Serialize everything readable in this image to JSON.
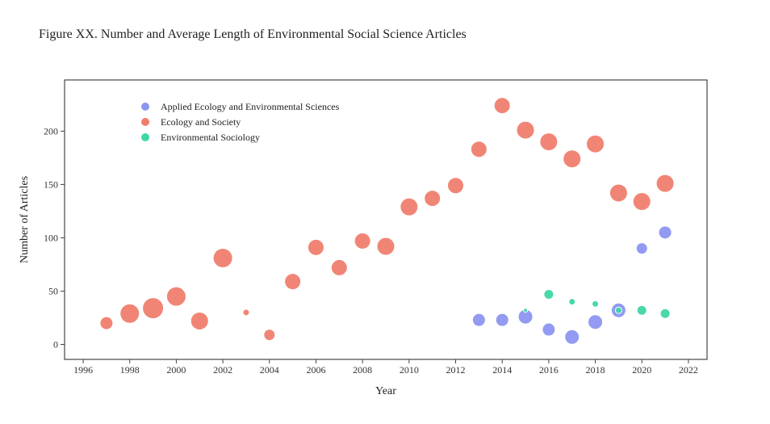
{
  "chart_data": {
    "type": "scatter",
    "title": "Figure XX. Number and Average Length of Environmental Social Science Articles",
    "xlabel": "Year",
    "ylabel": "Number of Articles",
    "xlim": [
      1995.2,
      2022.8
    ],
    "ylim": [
      -14,
      248
    ],
    "xticks": [
      1996,
      1998,
      2000,
      2002,
      2004,
      2006,
      2008,
      2010,
      2012,
      2014,
      2016,
      2018,
      2020,
      2022
    ],
    "yticks": [
      0,
      50,
      100,
      150,
      200
    ],
    "grid": false,
    "legend_position": "top-left",
    "series": [
      {
        "name": "Applied Ecology and Environmental Sciences",
        "color": "#8c96f0",
        "points": [
          {
            "x": 2013,
            "y": 23,
            "size": 8
          },
          {
            "x": 2014,
            "y": 23,
            "size": 8
          },
          {
            "x": 2015,
            "y": 26,
            "size": 9
          },
          {
            "x": 2016,
            "y": 14,
            "size": 8
          },
          {
            "x": 2017,
            "y": 7,
            "size": 9
          },
          {
            "x": 2018,
            "y": 21,
            "size": 9
          },
          {
            "x": 2019,
            "y": 32,
            "size": 9
          },
          {
            "x": 2020,
            "y": 90,
            "size": 7
          },
          {
            "x": 2021,
            "y": 105,
            "size": 8
          }
        ]
      },
      {
        "name": "Ecology and Society",
        "color": "#f07e6e",
        "points": [
          {
            "x": 1997,
            "y": 20,
            "size": 8
          },
          {
            "x": 1998,
            "y": 29,
            "size": 12
          },
          {
            "x": 1999,
            "y": 34,
            "size": 13
          },
          {
            "x": 2000,
            "y": 45,
            "size": 12
          },
          {
            "x": 2001,
            "y": 22,
            "size": 11
          },
          {
            "x": 2002,
            "y": 81,
            "size": 12
          },
          {
            "x": 2003,
            "y": 30,
            "size": 4
          },
          {
            "x": 2004,
            "y": 9,
            "size": 7
          },
          {
            "x": 2005,
            "y": 59,
            "size": 10
          },
          {
            "x": 2006,
            "y": 91,
            "size": 10
          },
          {
            "x": 2007,
            "y": 72,
            "size": 10
          },
          {
            "x": 2008,
            "y": 97,
            "size": 10
          },
          {
            "x": 2009,
            "y": 92,
            "size": 11
          },
          {
            "x": 2010,
            "y": 129,
            "size": 11
          },
          {
            "x": 2011,
            "y": 137,
            "size": 10
          },
          {
            "x": 2012,
            "y": 149,
            "size": 10
          },
          {
            "x": 2013,
            "y": 183,
            "size": 10
          },
          {
            "x": 2014,
            "y": 224,
            "size": 10
          },
          {
            "x": 2015,
            "y": 201,
            "size": 11
          },
          {
            "x": 2016,
            "y": 190,
            "size": 11
          },
          {
            "x": 2017,
            "y": 174,
            "size": 11
          },
          {
            "x": 2018,
            "y": 188,
            "size": 11
          },
          {
            "x": 2019,
            "y": 142,
            "size": 11
          },
          {
            "x": 2020,
            "y": 134,
            "size": 11
          },
          {
            "x": 2021,
            "y": 151,
            "size": 11
          }
        ]
      },
      {
        "name": "Environmental Sociology",
        "color": "#3fd6a5",
        "points": [
          {
            "x": 2015,
            "y": 32,
            "size": 2.5
          },
          {
            "x": 2016,
            "y": 47,
            "size": 6
          },
          {
            "x": 2017,
            "y": 40,
            "size": 4
          },
          {
            "x": 2018,
            "y": 38,
            "size": 4
          },
          {
            "x": 2019,
            "y": 32,
            "size": 4
          },
          {
            "x": 2020,
            "y": 32,
            "size": 6
          },
          {
            "x": 2021,
            "y": 29,
            "size": 6
          }
        ]
      }
    ]
  }
}
